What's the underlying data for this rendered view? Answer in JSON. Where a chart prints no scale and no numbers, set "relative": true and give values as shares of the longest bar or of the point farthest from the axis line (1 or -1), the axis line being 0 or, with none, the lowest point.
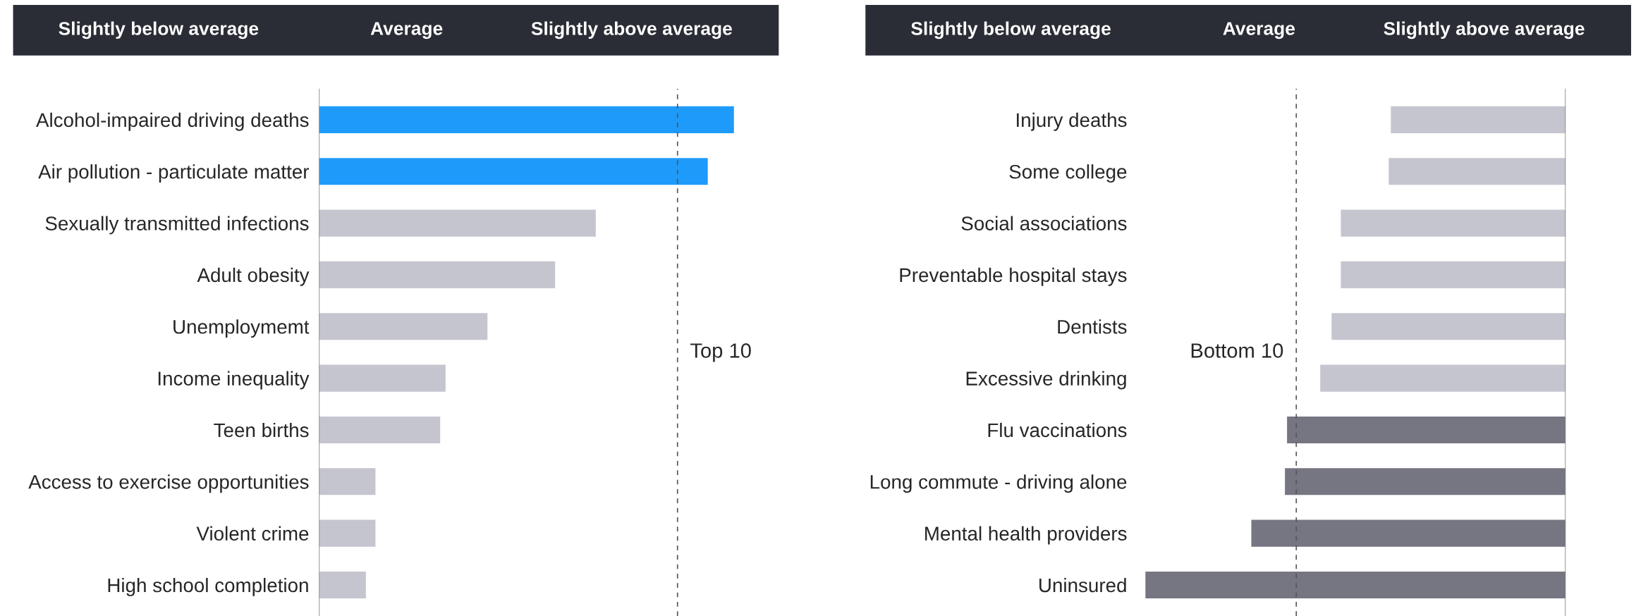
{
  "chart_data": [
    {
      "type": "bar",
      "orientation": "horizontal",
      "relative": true,
      "annotations": [
        "Slightly below average",
        "Average",
        "Slightly above average"
      ],
      "categories": [
        "Alcohol-impaired driving deaths",
        "Air pollution - particulate matter",
        "Sexually transmitted infections",
        "Adult obesity",
        "Unemploymemt",
        "Income inequality",
        "Teen births",
        "Access to exercise opportunities",
        "Violent crime",
        "High school completion"
      ],
      "values": [
        1,
        0.937,
        0.667,
        0.569,
        0.406,
        0.305,
        0.292,
        0.136,
        0.136,
        0.113
      ],
      "colors": [
        "#1e9bfa",
        "#1e9bfa",
        "#c5c5cf",
        "#c5c5cf",
        "#c5c5cf",
        "#c5c5cf",
        "#c5c5cf",
        "#c5c5cf",
        "#c5c5cf",
        "#c5c5cf"
      ],
      "ref_lines": [
        {
          "axis": "x",
          "value": 0.864,
          "label": "Top 10",
          "line_style": "dashed",
          "color": "#555555"
        }
      ]
    },
    {
      "type": "bar",
      "orientation": "horizontal",
      "relative": true,
      "annotations": [
        "Slightly below average",
        "Average",
        "Slightly above average"
      ],
      "categories": [
        "Injury deaths",
        "Some college",
        "Social associations",
        "Preventable hospital stays",
        "Dentists",
        "Excessive drinking",
        "Flu vaccinations",
        "Long commute - driving alone",
        "Mental health providers",
        "Uninsured"
      ],
      "values": [
        -0.416,
        -0.421,
        -0.535,
        -0.535,
        -0.557,
        -0.584,
        -0.663,
        -0.668,
        -0.748,
        -1
      ],
      "colors": [
        "#c5c5cf",
        "#c5c5cf",
        "#c5c5cf",
        "#c5c5cf",
        "#c5c5cf",
        "#c5c5cf",
        "#767682",
        "#767682",
        "#767682",
        "#767682"
      ],
      "ref_lines": [
        {
          "axis": "x",
          "value": -0.641,
          "label": "Bottom 10",
          "line_style": "dashed",
          "color": "#555555"
        }
      ]
    }
  ]
}
